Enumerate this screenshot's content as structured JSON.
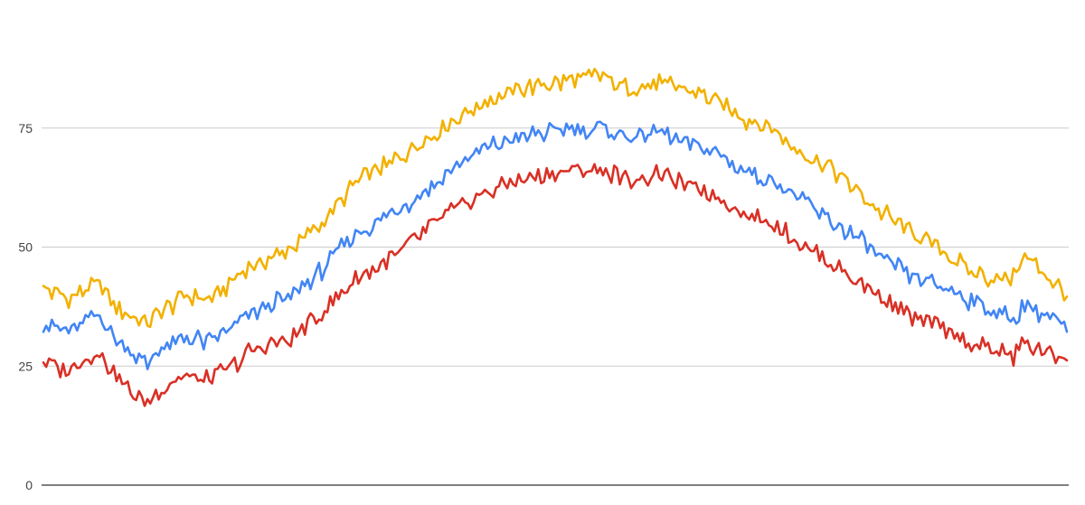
{
  "chart_data": {
    "type": "line",
    "title": "",
    "xlabel": "",
    "ylabel": "",
    "ylim": [
      0,
      100
    ],
    "y_ticks": [
      0,
      25,
      50,
      75
    ],
    "y_tick_labels": [
      "0",
      "25",
      "50",
      "75"
    ],
    "grid": true,
    "legend": "none",
    "x_range": [
      1,
      365
    ],
    "series": [
      {
        "color": "#f2b100",
        "x": [
          1,
          10,
          20,
          30,
          38,
          40,
          45,
          52,
          60,
          75,
          90,
          100,
          110,
          115,
          120,
          130,
          140,
          150,
          160,
          170,
          180,
          190,
          200,
          205,
          210,
          220,
          230,
          240,
          250,
          260,
          270,
          280,
          290,
          300,
          310,
          320,
          330,
          340,
          346,
          350,
          360,
          365
        ],
        "values": [
          41,
          39.5,
          42,
          36,
          33.5,
          35,
          37,
          40,
          39,
          46,
          50,
          55,
          62,
          65,
          66,
          70,
          74,
          78,
          81,
          83,
          84,
          85,
          86,
          84,
          83,
          84.5,
          83,
          81,
          77,
          75,
          70,
          67,
          62,
          57,
          53,
          50,
          45,
          43,
          44,
          48,
          43,
          40
        ]
      },
      {
        "color": "#4285f4",
        "x": [
          1,
          10,
          20,
          30,
          38,
          40,
          45,
          52,
          60,
          75,
          90,
          100,
          110,
          115,
          120,
          130,
          140,
          150,
          160,
          170,
          180,
          190,
          200,
          205,
          210,
          220,
          230,
          240,
          250,
          260,
          270,
          280,
          290,
          300,
          310,
          320,
          330,
          340,
          346,
          350,
          360,
          365
        ],
        "values": [
          34,
          32,
          36,
          29,
          25,
          27,
          29,
          31,
          30,
          36,
          40,
          45,
          52,
          54,
          55,
          59,
          63,
          68,
          71,
          73,
          74,
          75,
          75,
          74,
          73,
          74,
          72,
          70,
          66,
          64,
          60,
          56,
          52,
          47,
          44,
          42,
          39,
          36,
          35,
          38,
          35,
          32
        ]
      },
      {
        "color": "#d93025",
        "x": [
          1,
          10,
          20,
          30,
          38,
          40,
          45,
          52,
          60,
          75,
          90,
          100,
          110,
          115,
          120,
          130,
          140,
          150,
          160,
          170,
          180,
          190,
          200,
          205,
          210,
          220,
          230,
          240,
          250,
          260,
          270,
          280,
          290,
          300,
          310,
          320,
          330,
          340,
          346,
          350,
          360,
          365
        ],
        "values": [
          26,
          24,
          28,
          21,
          17,
          19,
          21,
          23,
          22,
          28,
          31,
          36,
          42,
          44,
          46,
          50,
          55,
          59,
          62,
          64,
          65,
          66,
          66,
          65,
          64,
          65,
          63,
          61,
          57,
          55,
          51,
          47,
          43,
          39,
          35,
          33,
          30,
          28,
          27,
          30,
          27,
          27
        ]
      }
    ]
  }
}
